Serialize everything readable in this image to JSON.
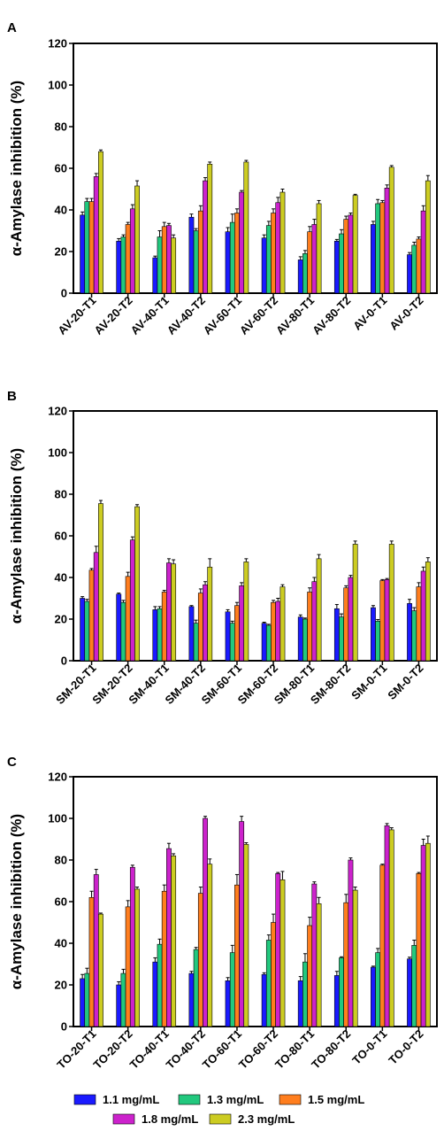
{
  "series_colors": [
    "#1a1aff",
    "#22c87e",
    "#ff7e1e",
    "#cc22cc",
    "#cccc22"
  ],
  "legend": [
    "1.1 mg/mL",
    "1.3 mg/mL",
    "1.5 mg/mL",
    "1.8 mg/mL",
    "2.3 mg/mL"
  ],
  "chart_data": [
    {
      "type": "bar",
      "panel": "A",
      "ylabel": "α-Amylase inhibition (%)",
      "ylim": [
        0,
        120
      ],
      "yticks": [
        "0",
        "20",
        "40",
        "60",
        "80",
        "100",
        "120"
      ],
      "categories": [
        "AV-20-T1",
        "AV-20-T2",
        "AV-40-T1",
        "AV-40-T2",
        "AV-60-T1",
        "AV-60-T2",
        "AV-80-T1",
        "AV-80-T2",
        "AV-0-T1",
        "AV-0-T2"
      ],
      "series": [
        {
          "name": "1.1 mg/mL",
          "values": [
            37.5,
            25,
            17,
            36.5,
            29.5,
            26.5,
            16,
            25,
            33,
            18.5
          ],
          "errors": [
            1.5,
            1.2,
            0.8,
            1.5,
            2,
            1.5,
            1.5,
            0.8,
            1.5,
            1
          ]
        },
        {
          "name": "1.3 mg/mL",
          "values": [
            44,
            27,
            27,
            30,
            34,
            32.5,
            19,
            28.5,
            43,
            23
          ],
          "errors": [
            1.5,
            1,
            3,
            1,
            4,
            2,
            1.5,
            2,
            2,
            1.5
          ]
        },
        {
          "name": "1.5 mg/mL",
          "values": [
            44,
            33,
            32,
            39.5,
            38.5,
            38.5,
            29.5,
            35.5,
            43.5,
            26
          ],
          "errors": [
            1.5,
            1,
            2,
            2.5,
            2,
            2,
            2.5,
            1.5,
            1,
            1
          ]
        },
        {
          "name": "1.8 mg/mL",
          "values": [
            56,
            40.5,
            32.5,
            54,
            48.5,
            43.5,
            33,
            37.5,
            50.5,
            39.5
          ],
          "errors": [
            1.5,
            2,
            1,
            1.5,
            0.8,
            2.5,
            2.5,
            1,
            1.5,
            2.5
          ]
        },
        {
          "name": "2.3 mg/mL",
          "values": [
            68,
            51.5,
            26.5,
            62,
            63,
            48.5,
            43,
            47,
            60.5,
            54
          ],
          "errors": [
            0.8,
            2.5,
            1.5,
            1,
            0.8,
            1.5,
            1.5,
            0.5,
            0.8,
            2.5
          ]
        }
      ]
    },
    {
      "type": "bar",
      "panel": "B",
      "ylabel": "α-Amylase inhibition (%)",
      "ylim": [
        0,
        120
      ],
      "yticks": [
        "0",
        "20",
        "40",
        "60",
        "80",
        "100",
        "120"
      ],
      "categories": [
        "SM-20-T1",
        "SM-20-T2",
        "SM-40-T1",
        "SM-40-T2",
        "SM-60-T1",
        "SM-60-T2",
        "SM-80-T1",
        "SM-80-T2",
        "SM-0-T1",
        "SM-0-T2"
      ],
      "series": [
        {
          "name": "1.1 mg/mL",
          "values": [
            30,
            32,
            24.5,
            26,
            23.5,
            18,
            21,
            25,
            25.5,
            27.5
          ],
          "errors": [
            0.8,
            0.5,
            1.5,
            0.5,
            1,
            0.5,
            1,
            2,
            1,
            2
          ]
        },
        {
          "name": "1.3 mg/mL",
          "values": [
            28.5,
            28,
            25,
            18,
            18,
            17,
            20,
            21,
            19,
            24
          ],
          "errors": [
            1,
            1,
            1,
            1.5,
            1,
            0.5,
            0.5,
            1.5,
            0.8,
            1.5
          ]
        },
        {
          "name": "1.5 mg/mL",
          "values": [
            43.5,
            40.5,
            33,
            32.5,
            26.5,
            28,
            33,
            35,
            38.5,
            35.5
          ],
          "errors": [
            0.8,
            2,
            0.8,
            2,
            1.5,
            1,
            2,
            1,
            0.5,
            2
          ]
        },
        {
          "name": "1.8 mg/mL",
          "values": [
            52,
            58,
            47,
            36.5,
            36,
            28.5,
            38,
            40,
            39,
            43
          ],
          "errors": [
            3,
            1.5,
            2,
            1.5,
            1.5,
            1.5,
            2,
            1,
            0.5,
            2
          ]
        },
        {
          "name": "2.3 mg/mL",
          "values": [
            75.5,
            74,
            46.5,
            45,
            47.5,
            35.5,
            49,
            56,
            56,
            47.5
          ],
          "errors": [
            1.5,
            1,
            2,
            4,
            1.5,
            1,
            2,
            1.5,
            1.5,
            2
          ]
        }
      ]
    },
    {
      "type": "bar",
      "panel": "C",
      "ylabel": "α-Amylase inhibition (%)",
      "ylim": [
        0,
        120
      ],
      "yticks": [
        "0",
        "20",
        "40",
        "60",
        "80",
        "100",
        "120"
      ],
      "categories": [
        "TO-20-T1",
        "TO-20-T2",
        "TO-40-T1",
        "TO-40-T2",
        "TO-60-T1",
        "TO-60-T2",
        "TO-80-T1",
        "TO-80-T2",
        "TO-0-T1",
        "TO-0-T2"
      ],
      "series": [
        {
          "name": "1.1 mg/mL",
          "values": [
            23,
            20,
            31,
            25.5,
            22,
            25,
            22,
            24.5,
            28.5,
            32.5
          ],
          "errors": [
            2,
            1.5,
            2,
            1,
            1.5,
            0.8,
            2,
            2,
            0.5,
            0.8
          ]
        },
        {
          "name": "1.3 mg/mL",
          "values": [
            25.5,
            25.5,
            39.5,
            37,
            35.5,
            41.5,
            31,
            33,
            35.5,
            39
          ],
          "errors": [
            2.5,
            2,
            2.5,
            1,
            3.5,
            2.5,
            4,
            0.5,
            2,
            2.5
          ]
        },
        {
          "name": "1.5 mg/mL",
          "values": [
            62,
            57.5,
            65,
            64,
            68,
            50,
            48.5,
            59.5,
            77.5,
            73.5
          ],
          "errors": [
            3,
            3,
            3,
            3,
            5,
            4,
            4,
            4,
            0.5,
            0.5
          ]
        },
        {
          "name": "1.8 mg/mL",
          "values": [
            73,
            76.5,
            85.5,
            100,
            98.5,
            73.5,
            68.5,
            80,
            96.5,
            87
          ],
          "errors": [
            2.5,
            1,
            2.5,
            1,
            2.5,
            0.5,
            1,
            1,
            1,
            3
          ]
        },
        {
          "name": "2.3 mg/mL",
          "values": [
            54,
            66,
            82,
            78,
            87.5,
            70.5,
            59,
            65.5,
            94.5,
            88
          ],
          "errors": [
            0.5,
            1,
            1,
            2.5,
            0.8,
            4,
            3,
            1.5,
            1,
            3.5
          ]
        }
      ]
    }
  ]
}
